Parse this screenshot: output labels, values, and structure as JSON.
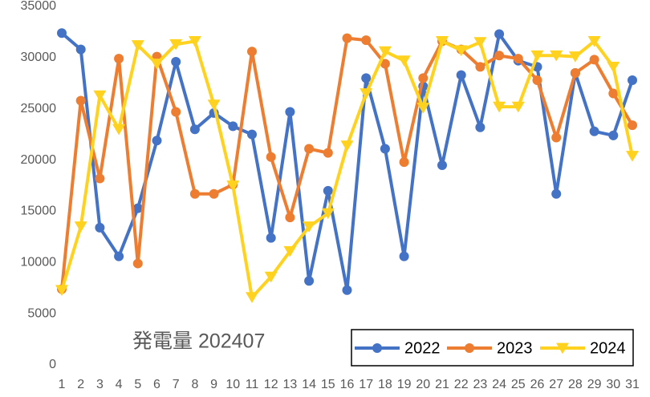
{
  "chart_data": {
    "type": "line",
    "title": "発電量 202407",
    "x": [
      1,
      2,
      3,
      4,
      5,
      6,
      7,
      8,
      9,
      10,
      11,
      12,
      13,
      14,
      15,
      16,
      17,
      18,
      19,
      20,
      21,
      22,
      23,
      24,
      25,
      26,
      27,
      28,
      29,
      30,
      31
    ],
    "xlim": [
      1,
      31
    ],
    "ylim": [
      0,
      35000
    ],
    "yticks": [
      0,
      5000,
      10000,
      15000,
      20000,
      25000,
      30000,
      35000
    ],
    "grid": false,
    "legend": "bottom-right",
    "series": [
      {
        "name": "2022",
        "color": "#4472c4",
        "marker": "circle",
        "values": [
          32400,
          30800,
          13400,
          10600,
          15300,
          21900,
          29600,
          23000,
          24600,
          23300,
          22500,
          12400,
          24700,
          8200,
          17000,
          7300,
          28000,
          21100,
          10600,
          27200,
          19500,
          28300,
          23200,
          32300,
          29700,
          29100,
          16700,
          28500,
          22800,
          22400,
          27800
        ]
      },
      {
        "name": "2023",
        "color": "#ed7d31",
        "marker": "circle",
        "values": [
          7400,
          25800,
          18200,
          29900,
          9900,
          30100,
          24700,
          16700,
          16700,
          17600,
          30600,
          20300,
          14400,
          21100,
          20700,
          31900,
          31700,
          29400,
          19800,
          28000,
          31600,
          30800,
          29100,
          30200,
          29900,
          27800,
          22200,
          28500,
          29800,
          26500,
          23400
        ]
      },
      {
        "name": "2024",
        "color": "#ffd21f",
        "marker": "triangle-down",
        "values": [
          7300,
          13500,
          26300,
          23000,
          31200,
          29400,
          31300,
          31600,
          25400,
          17500,
          6600,
          8600,
          11100,
          13500,
          14800,
          21400,
          26500,
          30600,
          29700,
          25100,
          31600,
          30700,
          31500,
          25200,
          25200,
          30200,
          30200,
          30100,
          31600,
          29100,
          20400
        ]
      }
    ]
  }
}
